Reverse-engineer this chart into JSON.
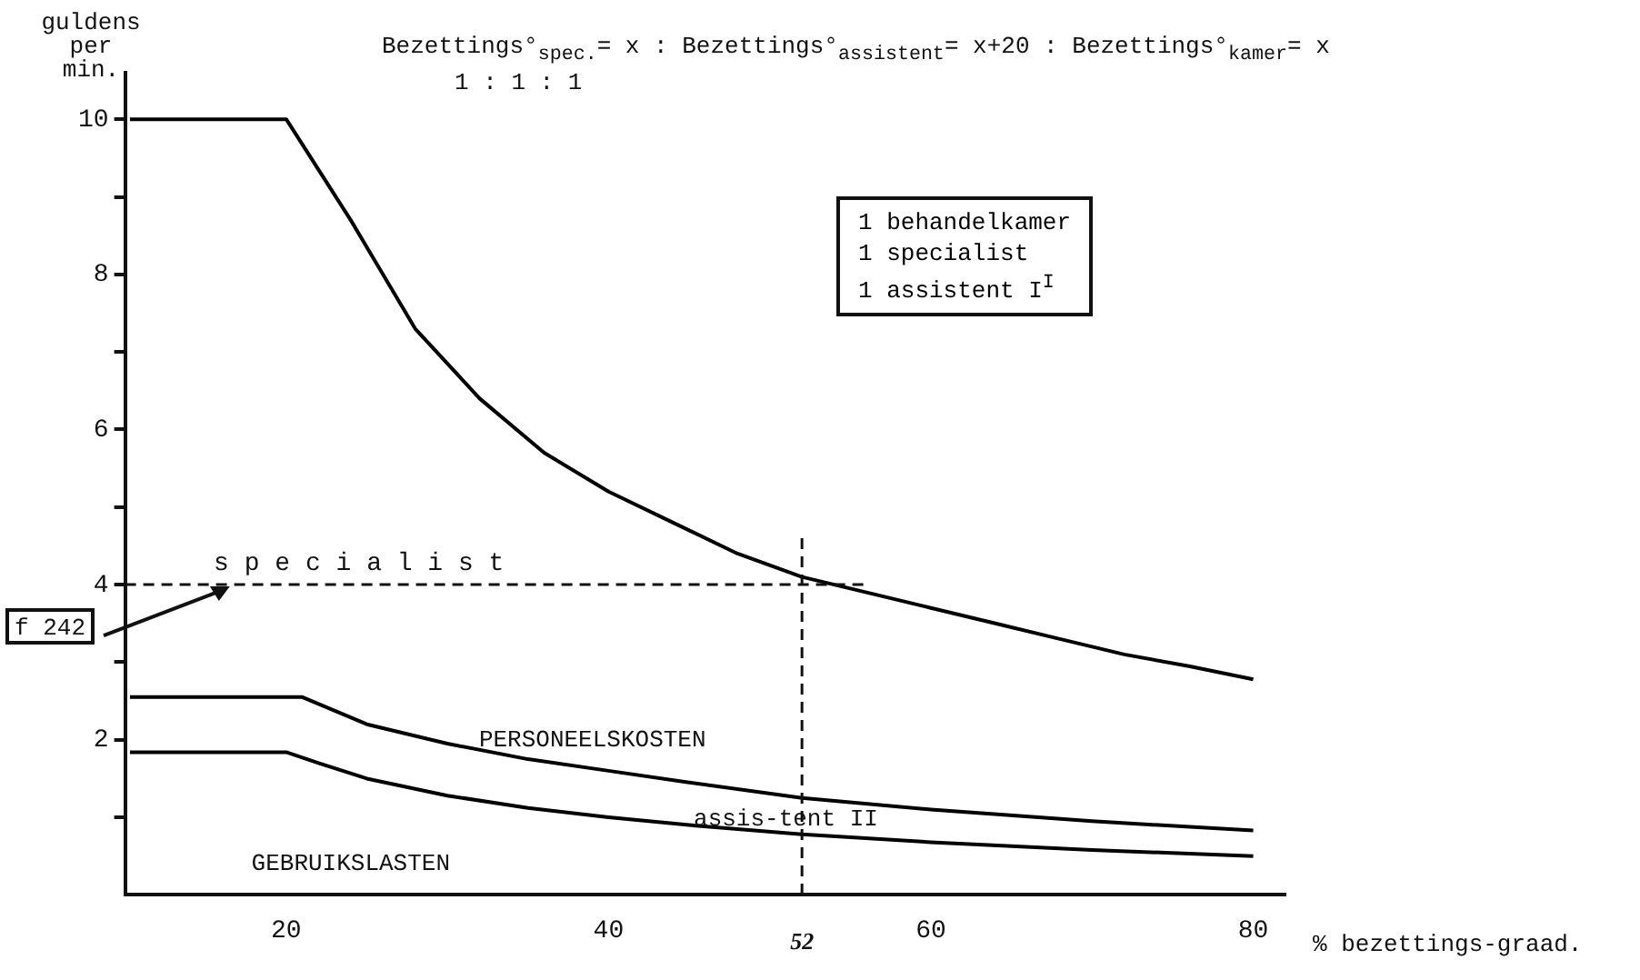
{
  "chart_data": {
    "type": "line",
    "title": "Bezettings°$_{spec.}$= x : Bezettings°$_{assistent}$= x+20 : Bezettings°$_{kamer}$= x",
    "subtitle": "1 : 1 : 1",
    "xlabel": "% bezettings-graad.",
    "ylabel": "guldens per min.",
    "xlim": [
      10,
      82
    ],
    "xticks": [
      20,
      40,
      60,
      80
    ],
    "ylim": [
      0,
      10.6
    ],
    "yticks": [
      {
        "value": 1,
        "label": null
      },
      2,
      {
        "value": 3,
        "label": null
      },
      4,
      {
        "value": 5,
        "label": null
      },
      6,
      {
        "value": 7,
        "label": null
      },
      8,
      {
        "value": 9,
        "label": null
      },
      10
    ],
    "grid": false,
    "legend": false,
    "marker": "none",
    "line_style": "solid",
    "series": [
      {
        "color": "#000000",
        "x": [
          10.3,
          20,
          24,
          28,
          32,
          36,
          40,
          44,
          48,
          52,
          56,
          60,
          64,
          68,
          72,
          76,
          80
        ],
        "values": [
          10,
          10,
          8.7,
          7.3,
          6.4,
          5.7,
          5.2,
          4.8,
          4.4,
          4.1,
          3.9,
          3.7,
          3.5,
          3.3,
          3.1,
          2.95,
          2.78
        ]
      },
      {
        "color": "#000000",
        "x": [
          10.3,
          21,
          25,
          30,
          35,
          40,
          45,
          52,
          60,
          70,
          80
        ],
        "values": [
          2.55,
          2.55,
          2.2,
          1.95,
          1.75,
          1.6,
          1.45,
          1.25,
          1.1,
          0.95,
          0.83
        ]
      },
      {
        "color": "#000000",
        "x": [
          10.3,
          20,
          22,
          25,
          30,
          35,
          40,
          45,
          52,
          60,
          70,
          80
        ],
        "values": [
          1.84,
          1.84,
          1.7,
          1.5,
          1.28,
          1.12,
          1,
          0.9,
          0.78,
          0.68,
          0.58,
          0.5
        ]
      }
    ],
    "ref_lines": [
      {
        "axis": "y",
        "value": 4,
        "label": "s p e c i a l i s t",
        "line_style": "dashed"
      },
      {
        "axis": "x",
        "value": 52,
        "label": "52",
        "line_style": "dashed"
      }
    ],
    "annotations": [
      {
        "text": "f 242",
        "x": 16.5,
        "y": 4
      },
      "PERSONEELSKOSTEN",
      "assis-tent II",
      "GEBRUIKSLASTEN",
      "1 behandelkamer",
      "1 specialist",
      "1 assistent I$^{I}$"
    ]
  }
}
